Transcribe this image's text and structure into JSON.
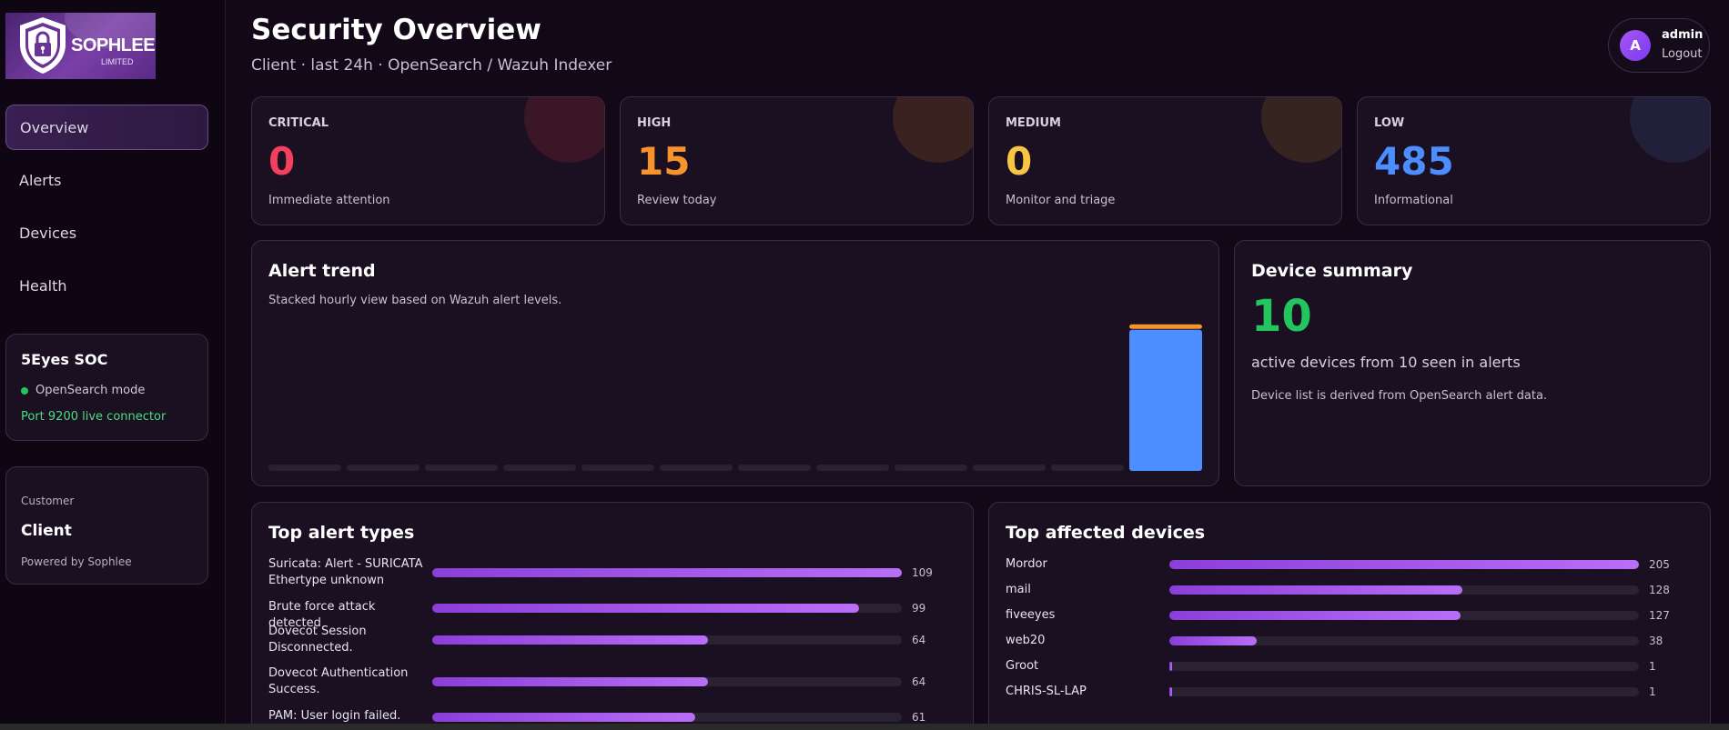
{
  "brand": {
    "name": "SOPHLEE",
    "sub": "LIMITED"
  },
  "nav": [
    {
      "label": "Overview",
      "active": true
    },
    {
      "label": "Alerts",
      "active": false
    },
    {
      "label": "Devices",
      "active": false
    },
    {
      "label": "Health",
      "active": false
    }
  ],
  "soc": {
    "title": "5Eyes SOC",
    "mode": "OpenSearch mode",
    "port": "Port 9200 live connector"
  },
  "customer": {
    "label": "Customer",
    "name": "Client",
    "powered": "Powered by Sophlee"
  },
  "header": {
    "title": "Security Overview",
    "subtitle": "Client · last 24h · OpenSearch / Wazuh Indexer"
  },
  "user": {
    "initial": "A",
    "name": "admin",
    "logout": "Logout"
  },
  "kpis": [
    {
      "label": "CRITICAL",
      "value": "0",
      "desc": "Immediate attention",
      "color": "#f43f5e",
      "glow": "#3a1626"
    },
    {
      "label": "HIGH",
      "value": "15",
      "desc": "Review today",
      "color": "#f7932b",
      "glow": "#3a2220"
    },
    {
      "label": "MEDIUM",
      "value": "0",
      "desc": "Monitor and triage",
      "color": "#f7c543",
      "glow": "#35241f"
    },
    {
      "label": "LOW",
      "value": "485",
      "desc": "Informational",
      "color": "#4c8dff",
      "glow": "#211f3a"
    }
  ],
  "alert_trend": {
    "title": "Alert trend",
    "subtitle": "Stacked hourly view based on Wazuh alert levels.",
    "colors": {
      "low": "#4c8dff",
      "high": "#f7932b",
      "empty": "#2a2030"
    }
  },
  "chart_data": {
    "type": "bar",
    "title": "Alert trend",
    "stacked": true,
    "categories": [
      "",
      "",
      "",
      "",
      "",
      "",
      "",
      "",
      "",
      "",
      "",
      ""
    ],
    "series": [
      {
        "values": [
          0,
          0,
          0,
          0,
          0,
          0,
          0,
          0,
          0,
          0,
          0,
          485
        ]
      },
      {
        "values": [
          0,
          0,
          0,
          0,
          0,
          0,
          0,
          0,
          0,
          0,
          0,
          15
        ]
      }
    ],
    "grid": false
  },
  "device_summary": {
    "title": "Device summary",
    "value": "10",
    "text": "active devices from 10 seen in alerts",
    "note": "Device list is derived from OpenSearch alert data."
  },
  "top_alerts": {
    "title": "Top alert types",
    "items": [
      {
        "label": "Suricata: Alert - SURICATA Ethertype unknown",
        "value": 109
      },
      {
        "label": "Brute force attack detected",
        "value": 99
      },
      {
        "label": "Dovecot Session Disconnected.",
        "value": 64
      },
      {
        "label": "Dovecot Authentication Success.",
        "value": 64
      },
      {
        "label": "PAM: User login failed.",
        "value": 61
      }
    ]
  },
  "top_devices": {
    "title": "Top affected devices",
    "items": [
      {
        "label": "Mordor",
        "value": 205
      },
      {
        "label": "mail",
        "value": 128
      },
      {
        "label": "fiveeyes",
        "value": 127
      },
      {
        "label": "web20",
        "value": 38
      },
      {
        "label": "Groot",
        "value": 1
      },
      {
        "label": "CHRIS-SL-LAP",
        "value": 1
      }
    ]
  }
}
